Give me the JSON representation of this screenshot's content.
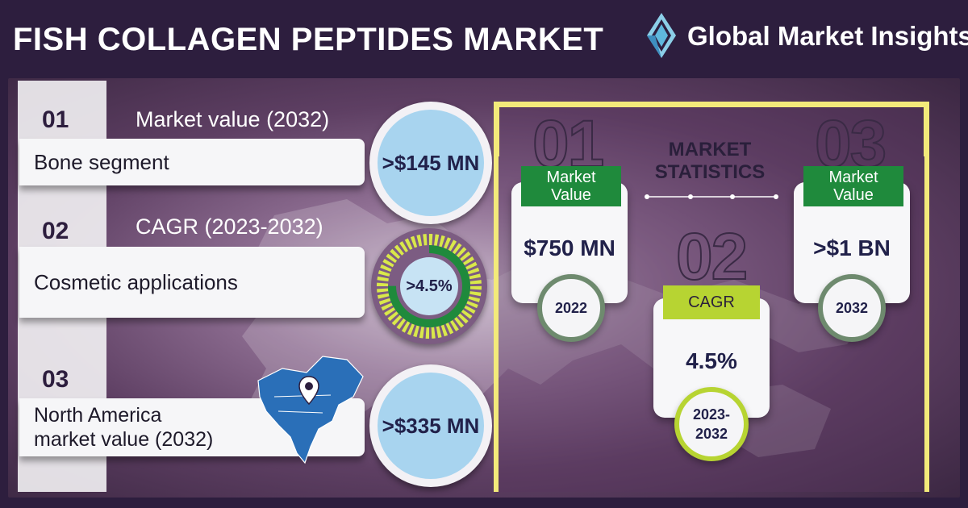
{
  "header": {
    "title": "FISH COLLAGEN PEPTIDES MARKET",
    "brand": "Global Market Insights"
  },
  "highlights": [
    {
      "num": "01",
      "caption": "Market value (2032)",
      "label": "Bone segment",
      "value": ">$145 MN"
    },
    {
      "num": "02",
      "caption": "CAGR (2023-2032)",
      "label": "Cosmetic applications",
      "value": ">4.5%",
      "ring_fill": 0.75
    },
    {
      "num": "03",
      "caption": "",
      "label": "North America market value (2032)",
      "label_line1": "North America",
      "label_line2": "market value (2032)",
      "value": ">$335 MN"
    }
  ],
  "stats": {
    "title_line1": "MARKET",
    "title_line2": "STATISTICS",
    "cards": [
      {
        "num": "01",
        "ribbon_line1": "Market",
        "ribbon_line2": "Value",
        "value": "$750 MN",
        "year": "2022"
      },
      {
        "num": "02",
        "ribbon_line1": "CAGR",
        "ribbon_line2": "",
        "value": "4.5%",
        "year_line1": "2023-",
        "year_line2": "2032"
      },
      {
        "num": "03",
        "ribbon_line1": "Market",
        "ribbon_line2": "Value",
        "value": ">$1 BN",
        "year": "2032"
      }
    ]
  },
  "colors": {
    "header_bg": "#2d1e3e",
    "accent_yellow": "#f3ea7a",
    "ribbon_green": "#1f8a3c",
    "ribbon_lime": "#b7d432",
    "circle_blue": "#a8d4ef",
    "map_blue": "#2a6fb8"
  },
  "icons": [
    "diamond-logo-icon",
    "north-america-map-icon",
    "map-pin-icon"
  ]
}
